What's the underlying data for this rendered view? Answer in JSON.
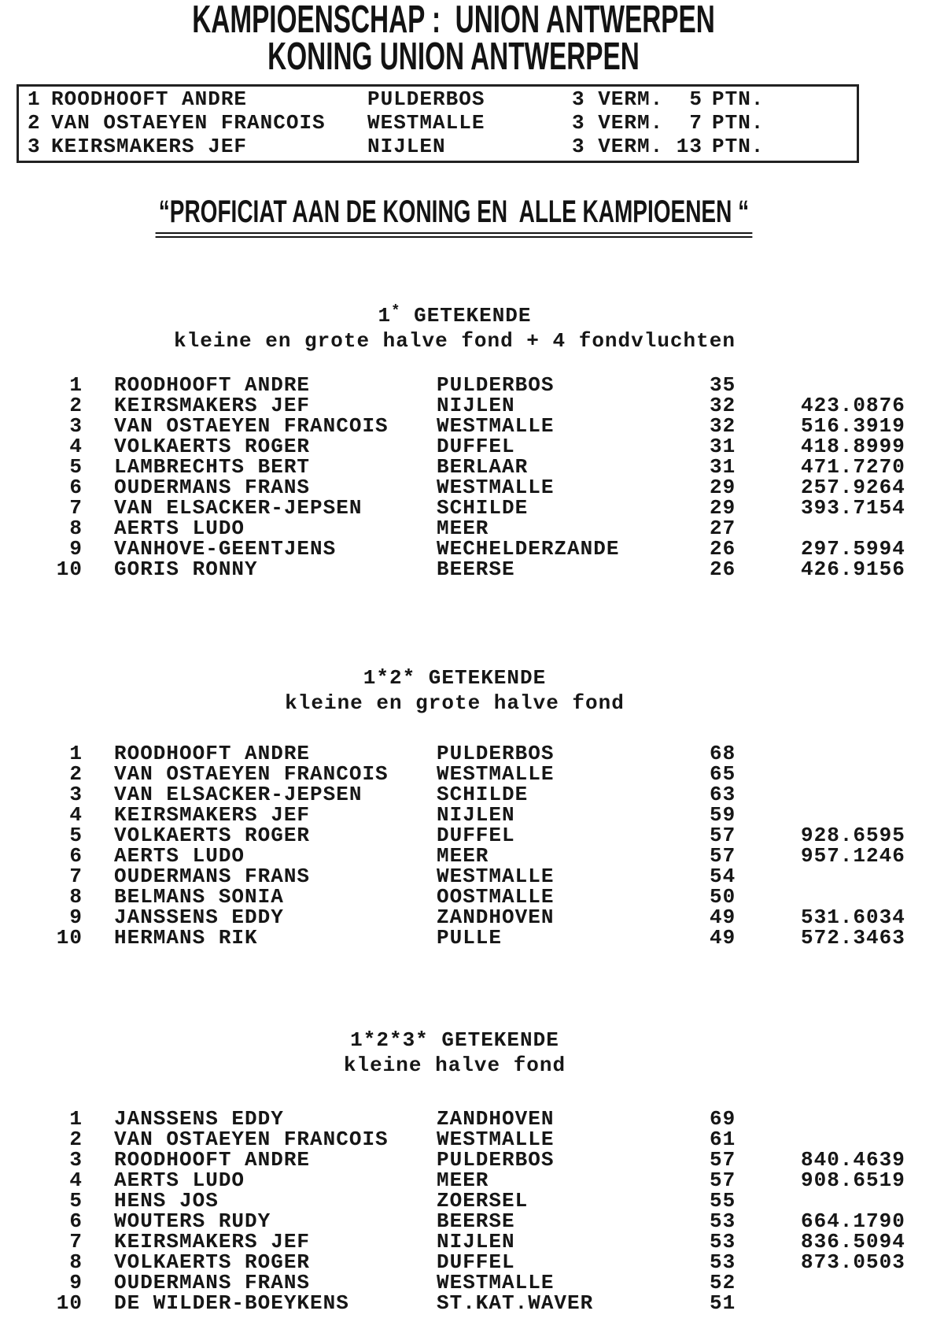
{
  "header": {
    "title_line1": "KAMPIOENSCHAP :  UNION ANTWERPEN",
    "title_line2": "KONING UNION ANTWERPEN"
  },
  "king_standings": {
    "rows": [
      {
        "rank": "1",
        "name": "ROODHOOFT ANDRE",
        "locality": "PULDERBOS",
        "vermeldingen": "3 VERM.",
        "points": "5",
        "points_label": "PTN."
      },
      {
        "rank": "2",
        "name": "VAN OSTAEYEN FRANCOIS",
        "locality": "WESTMALLE",
        "vermeldingen": "3 VERM.",
        "points": "7",
        "points_label": "PTN."
      },
      {
        "rank": "3",
        "name": "KEIRSMAKERS JEF",
        "locality": "NIJLEN",
        "vermeldingen": "3 VERM.",
        "points": "13",
        "points_label": "PTN."
      }
    ]
  },
  "congratulations": "“PROFICIAT AAN DE KONING EN  ALLE KAMPIOENEN “",
  "sections": [
    {
      "head_left": "1",
      "head_sup": "*",
      "head_right": " GETEKENDE",
      "subtitle": "kleine en grote halve fond + 4 fondvluchten",
      "rows": [
        {
          "rank": "1",
          "name": "ROODHOOFT ANDRE",
          "locality": "PULDERBOS",
          "count": "35",
          "coefficient": ""
        },
        {
          "rank": "2",
          "name": "KEIRSMAKERS JEF",
          "locality": "NIJLEN",
          "count": "32",
          "coefficient": "423.0876"
        },
        {
          "rank": "3",
          "name": "VAN OSTAEYEN FRANCOIS",
          "locality": "WESTMALLE",
          "count": "32",
          "coefficient": "516.3919"
        },
        {
          "rank": "4",
          "name": "VOLKAERTS ROGER",
          "locality": "DUFFEL",
          "count": "31",
          "coefficient": "418.8999"
        },
        {
          "rank": "5",
          "name": "LAMBRECHTS BERT",
          "locality": "BERLAAR",
          "count": "31",
          "coefficient": "471.7270"
        },
        {
          "rank": "6",
          "name": "OUDERMANS FRANS",
          "locality": "WESTMALLE",
          "count": "29",
          "coefficient": "257.9264"
        },
        {
          "rank": "7",
          "name": "VAN ELSACKER-JEPSEN",
          "locality": "SCHILDE",
          "count": "29",
          "coefficient": "393.7154"
        },
        {
          "rank": "8",
          "name": "AERTS LUDO",
          "locality": "MEER",
          "count": "27",
          "coefficient": ""
        },
        {
          "rank": "9",
          "name": "VANHOVE-GEENTJENS",
          "locality": "WECHELDERZANDE",
          "count": "26",
          "coefficient": "297.5994"
        },
        {
          "rank": "10",
          "name": "GORIS RONNY",
          "locality": "BEERSE",
          "count": "26",
          "coefficient": "426.9156"
        }
      ]
    },
    {
      "head_left": "1*2*",
      "head_sup": "",
      "head_right": " GETEKENDE",
      "subtitle": "kleine en grote halve fond",
      "rows": [
        {
          "rank": "1",
          "name": "ROODHOOFT ANDRE",
          "locality": "PULDERBOS",
          "count": "68",
          "coefficient": ""
        },
        {
          "rank": "2",
          "name": "VAN OSTAEYEN FRANCOIS",
          "locality": "WESTMALLE",
          "count": "65",
          "coefficient": ""
        },
        {
          "rank": "3",
          "name": "VAN ELSACKER-JEPSEN",
          "locality": "SCHILDE",
          "count": "63",
          "coefficient": ""
        },
        {
          "rank": "4",
          "name": "KEIRSMAKERS JEF",
          "locality": "NIJLEN",
          "count": "59",
          "coefficient": ""
        },
        {
          "rank": "5",
          "name": "VOLKAERTS ROGER",
          "locality": "DUFFEL",
          "count": "57",
          "coefficient": "928.6595"
        },
        {
          "rank": "6",
          "name": "AERTS LUDO",
          "locality": "MEER",
          "count": "57",
          "coefficient": "957.1246"
        },
        {
          "rank": "7",
          "name": "OUDERMANS FRANS",
          "locality": "WESTMALLE",
          "count": "54",
          "coefficient": ""
        },
        {
          "rank": "8",
          "name": "BELMANS SONIA",
          "locality": "OOSTMALLE",
          "count": "50",
          "coefficient": ""
        },
        {
          "rank": "9",
          "name": "JANSSENS EDDY",
          "locality": "ZANDHOVEN",
          "count": "49",
          "coefficient": "531.6034"
        },
        {
          "rank": "10",
          "name": "HERMANS RIK",
          "locality": "PULLE",
          "count": "49",
          "coefficient": "572.3463"
        }
      ]
    },
    {
      "head_left": "1*2*3*",
      "head_sup": "",
      "head_right": " GETEKENDE",
      "subtitle": "kleine halve fond",
      "rows": [
        {
          "rank": "1",
          "name": "JANSSENS EDDY",
          "locality": "ZANDHOVEN",
          "count": "69",
          "coefficient": ""
        },
        {
          "rank": "2",
          "name": "VAN OSTAEYEN FRANCOIS",
          "locality": "WESTMALLE",
          "count": "61",
          "coefficient": ""
        },
        {
          "rank": "3",
          "name": "ROODHOOFT ANDRE",
          "locality": "PULDERBOS",
          "count": "57",
          "coefficient": "840.4639"
        },
        {
          "rank": "4",
          "name": "AERTS LUDO",
          "locality": "MEER",
          "count": "57",
          "coefficient": "908.6519"
        },
        {
          "rank": "5",
          "name": "HENS JOS",
          "locality": "ZOERSEL",
          "count": "55",
          "coefficient": ""
        },
        {
          "rank": "6",
          "name": "WOUTERS RUDY",
          "locality": "BEERSE",
          "count": "53",
          "coefficient": "664.1790"
        },
        {
          "rank": "7",
          "name": "KEIRSMAKERS JEF",
          "locality": "NIJLEN",
          "count": "53",
          "coefficient": "836.5094"
        },
        {
          "rank": "8",
          "name": "VOLKAERTS ROGER",
          "locality": "DUFFEL",
          "count": "53",
          "coefficient": "873.0503"
        },
        {
          "rank": "9",
          "name": "OUDERMANS FRANS",
          "locality": "WESTMALLE",
          "count": "52",
          "coefficient": ""
        },
        {
          "rank": "10",
          "name": "DE WILDER-BOEYKENS",
          "locality": "ST.KAT.WAVER",
          "count": "51",
          "coefficient": ""
        }
      ]
    }
  ]
}
